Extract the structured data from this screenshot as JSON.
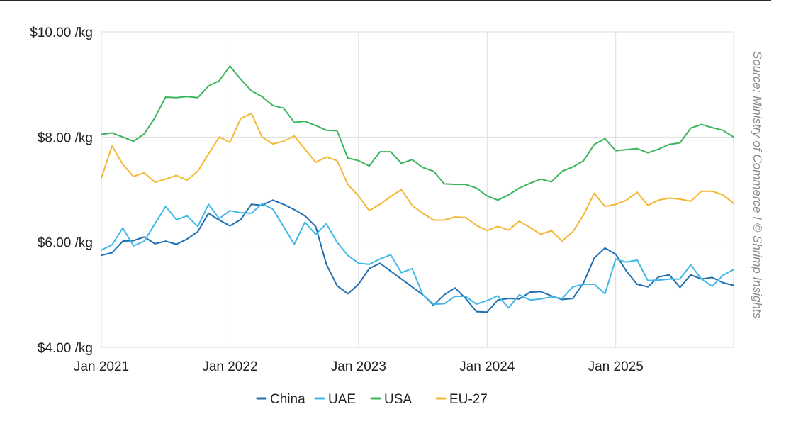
{
  "chart_data": {
    "type": "line",
    "ylim": [
      4,
      10
    ],
    "yticks": [
      {
        "value": 4,
        "label": "$4.00 /kg"
      },
      {
        "value": 6,
        "label": "$6.00 /kg"
      },
      {
        "value": 8,
        "label": "$8.00 /kg"
      },
      {
        "value": 10,
        "label": "$10.00 /kg"
      }
    ],
    "xticks": [
      {
        "date": "2021-01",
        "label": "Jan 2021"
      },
      {
        "date": "2022-01",
        "label": "Jan 2022"
      },
      {
        "date": "2023-01",
        "label": "Jan 2023"
      },
      {
        "date": "2024-01",
        "label": "Jan 2024"
      },
      {
        "date": "2025-01",
        "label": "Jan 2025"
      }
    ],
    "x_start": "2021-01",
    "x_end": "2025-12",
    "x": [
      "2021-01",
      "2021-02",
      "2021-03",
      "2021-04",
      "2021-05",
      "2021-06",
      "2021-07",
      "2021-08",
      "2021-09",
      "2021-10",
      "2021-11",
      "2021-12",
      "2022-01",
      "2022-02",
      "2022-03",
      "2022-04",
      "2022-05",
      "2022-06",
      "2022-07",
      "2022-08",
      "2022-09",
      "2022-10",
      "2022-11",
      "2022-12",
      "2023-01",
      "2023-02",
      "2023-03",
      "2023-04",
      "2023-05",
      "2023-06",
      "2023-07",
      "2023-08",
      "2023-09",
      "2023-10",
      "2023-11",
      "2023-12",
      "2024-01",
      "2024-02",
      "2024-03",
      "2024-04",
      "2024-05",
      "2024-06",
      "2024-07",
      "2024-08",
      "2024-09",
      "2024-10",
      "2024-11",
      "2024-12",
      "2025-01",
      "2025-02",
      "2025-03",
      "2025-04",
      "2025-05",
      "2025-06",
      "2025-07",
      "2025-08",
      "2025-09",
      "2025-10",
      "2025-11",
      "2025-12"
    ],
    "series": [
      {
        "name": "China",
        "color": "#1f6fb2",
        "values": [
          5.75,
          5.8,
          6.02,
          6.03,
          6.1,
          5.97,
          6.02,
          5.96,
          6.06,
          6.2,
          6.55,
          6.42,
          6.31,
          6.43,
          6.72,
          6.7,
          6.8,
          6.72,
          6.62,
          6.5,
          6.3,
          5.58,
          5.17,
          5.02,
          5.2,
          5.5,
          5.6,
          5.45,
          5.3,
          5.15,
          5.0,
          4.8,
          5.0,
          5.13,
          4.93,
          4.68,
          4.67,
          4.9,
          4.93,
          4.92,
          5.05,
          5.06,
          4.98,
          4.91,
          4.93,
          5.23,
          5.7,
          5.89,
          5.77,
          5.45,
          5.2,
          5.15,
          5.34,
          5.38,
          5.14,
          5.38,
          5.3,
          5.33,
          5.23,
          5.18
        ]
      },
      {
        "name": "UAE",
        "color": "#41b8e6",
        "values": [
          5.85,
          5.95,
          6.27,
          5.93,
          6.02,
          6.35,
          6.68,
          6.43,
          6.5,
          6.3,
          6.72,
          6.45,
          6.6,
          6.56,
          6.55,
          6.73,
          6.63,
          6.3,
          5.96,
          6.38,
          6.15,
          6.35,
          6.0,
          5.75,
          5.6,
          5.58,
          5.68,
          5.76,
          5.42,
          5.5,
          5.0,
          4.82,
          4.83,
          4.97,
          4.97,
          4.82,
          4.89,
          4.98,
          4.75,
          5.0,
          4.9,
          4.92,
          4.96,
          4.93,
          5.15,
          5.2,
          5.2,
          5.02,
          5.68,
          5.62,
          5.66,
          5.27,
          5.28,
          5.3,
          5.3,
          5.57,
          5.3,
          5.16,
          5.37,
          5.48
        ]
      },
      {
        "name": "USA",
        "color": "#3bb55c",
        "values": [
          8.05,
          8.08,
          8.0,
          7.92,
          8.06,
          8.37,
          8.76,
          8.75,
          8.77,
          8.75,
          8.97,
          9.07,
          9.35,
          9.1,
          8.88,
          8.77,
          8.6,
          8.55,
          8.28,
          8.3,
          8.22,
          8.13,
          8.12,
          7.6,
          7.55,
          7.45,
          7.72,
          7.72,
          7.5,
          7.57,
          7.42,
          7.35,
          7.11,
          7.1,
          7.1,
          7.03,
          6.88,
          6.8,
          6.9,
          7.03,
          7.12,
          7.2,
          7.15,
          7.35,
          7.43,
          7.55,
          7.86,
          7.97,
          7.74,
          7.76,
          7.78,
          7.7,
          7.77,
          7.86,
          7.89,
          8.17,
          8.24,
          8.18,
          8.13,
          8.0
        ]
      },
      {
        "name": "EU-27",
        "color": "#f4b733",
        "values": [
          7.22,
          7.83,
          7.48,
          7.25,
          7.32,
          7.14,
          7.2,
          7.27,
          7.18,
          7.35,
          7.68,
          8.0,
          7.9,
          8.35,
          8.45,
          8.0,
          7.87,
          7.92,
          8.02,
          7.77,
          7.52,
          7.62,
          7.55,
          7.1,
          6.88,
          6.6,
          6.72,
          6.87,
          7.0,
          6.7,
          6.55,
          6.42,
          6.42,
          6.48,
          6.47,
          6.32,
          6.22,
          6.3,
          6.23,
          6.4,
          6.28,
          6.15,
          6.22,
          6.02,
          6.2,
          6.52,
          6.93,
          6.68,
          6.72,
          6.8,
          6.95,
          6.7,
          6.8,
          6.84,
          6.82,
          6.78,
          6.97,
          6.97,
          6.9,
          6.74
        ]
      }
    ],
    "grid": true,
    "legend_position": "bottom-center",
    "annotation": "Source: Ministry of Commerce I © Shrimp Insights"
  }
}
